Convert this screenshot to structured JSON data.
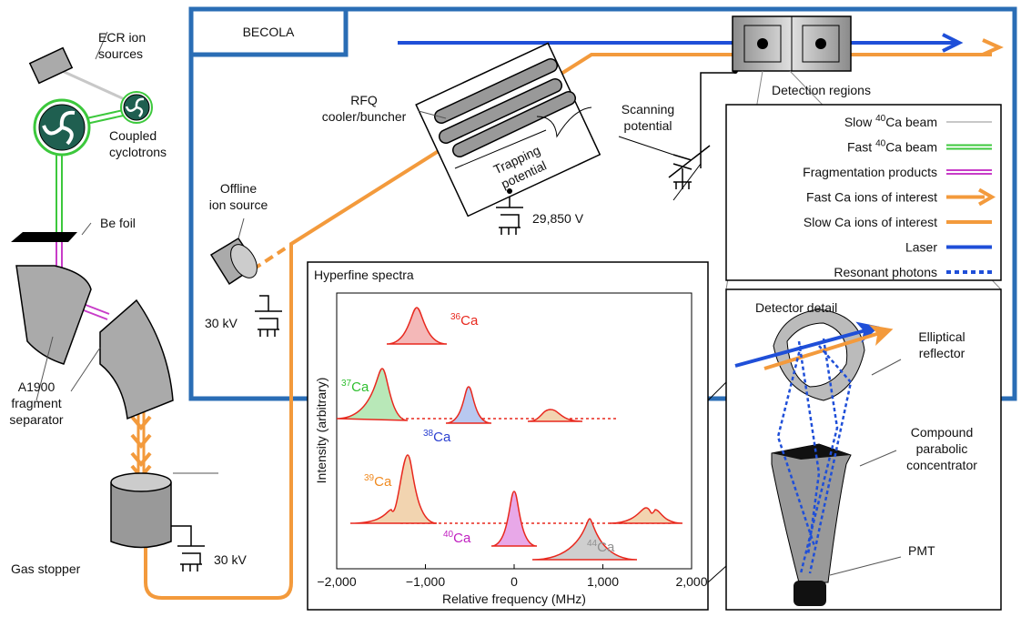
{
  "labels": {
    "ecr": [
      "ECR ion",
      "sources"
    ],
    "cyclotrons": [
      "Coupled",
      "cyclotrons"
    ],
    "be_foil": "Be foil",
    "a1900": [
      "A1900",
      "fragment",
      "separator"
    ],
    "gas_stopper": "Gas stopper",
    "hv_gas": "30 kV",
    "offline": [
      "Offline",
      "ion source"
    ],
    "hv_offline": "30 kV",
    "becola": "BECOLA",
    "rfq": [
      "RFQ",
      "cooler/buncher"
    ],
    "trapping": [
      "Trapping",
      "potential"
    ],
    "rfq_voltage": "29,850 V",
    "scanning": [
      "Scanning",
      "potential"
    ],
    "detection": "Detection regions",
    "detector_detail": "Detector detail",
    "reflector": [
      "Elliptical",
      "reflector"
    ],
    "concentrator": [
      "Compound",
      "parabolic",
      "concentrator"
    ],
    "pmt": "PMT"
  },
  "legend": [
    {
      "pre": "Slow ",
      "sup": "40",
      "post": "Ca beam",
      "color": "#c8c8c8",
      "style": "single"
    },
    {
      "pre": "Fast ",
      "sup": "40",
      "post": "Ca beam",
      "color": "#3cc83c",
      "style": "double"
    },
    {
      "text": "Fragmentation products",
      "color": "#c83cc8",
      "style": "double"
    },
    {
      "text": "Fast Ca ions of interest",
      "color": "#f39a3c",
      "style": "arrow"
    },
    {
      "text": "Slow Ca ions of interest",
      "color": "#f39a3c",
      "style": "thick"
    },
    {
      "text": "Laser",
      "color": "#1f4fd8",
      "style": "thick"
    },
    {
      "text": "Resonant photons",
      "color": "#1f4fd8",
      "style": "dotted"
    }
  ],
  "spectra": {
    "title": "Hyperfine spectra",
    "xlabel": "Relative frequency (MHz)",
    "ylabel": "Intensity (arbitrary)",
    "xlim": [
      -2000,
      2000
    ],
    "xticks": [
      {
        "value": -2000,
        "label": "−2,000"
      },
      {
        "value": -1000,
        "label": "−1,000"
      },
      0,
      {
        "value": 1000,
        "label": "1,000"
      },
      {
        "value": 2000,
        "label": "2,000"
      }
    ],
    "isotopes": [
      {
        "mass": "36",
        "element": "Ca",
        "color": "#e8281e"
      },
      {
        "mass": "37",
        "element": "Ca",
        "color": "#2fbf2f"
      },
      {
        "mass": "38",
        "element": "Ca",
        "color": "#2a3fd0"
      },
      {
        "mass": "39",
        "element": "Ca",
        "color": "#f08a20"
      },
      {
        "mass": "40",
        "element": "Ca",
        "color": "#c020c0"
      },
      {
        "mass": "44",
        "element": "Ca",
        "color": "#909090"
      }
    ]
  }
}
